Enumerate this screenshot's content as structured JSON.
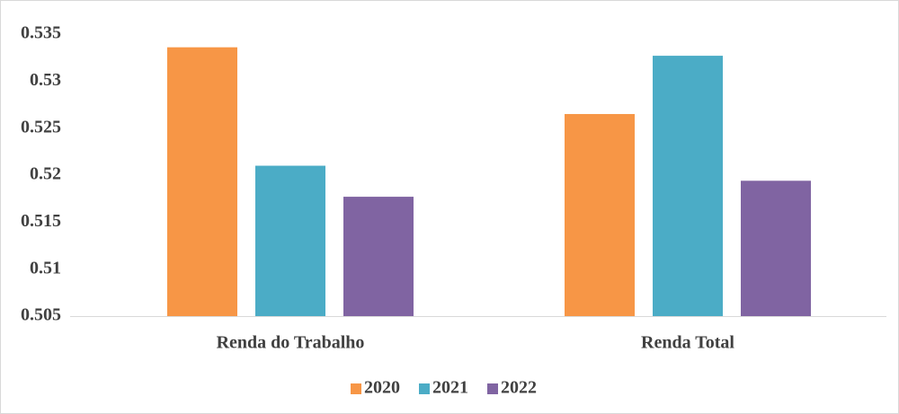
{
  "chart_data": {
    "type": "bar",
    "categories": [
      "Renda do Trabalho",
      "Renda Total"
    ],
    "series": [
      {
        "name": "2020",
        "color": "#f79646",
        "values": [
          0.5336,
          0.5265
        ]
      },
      {
        "name": "2021",
        "color": "#4bacc6",
        "values": [
          0.521,
          0.5327
        ]
      },
      {
        "name": "2022",
        "color": "#8064a2",
        "values": [
          0.5177,
          0.5194
        ]
      }
    ],
    "ylim": [
      0.505,
      0.535
    ],
    "yticks": [
      0.505,
      0.51,
      0.515,
      0.52,
      0.525,
      0.53,
      0.535
    ],
    "grid": false,
    "legend": "bottom"
  }
}
